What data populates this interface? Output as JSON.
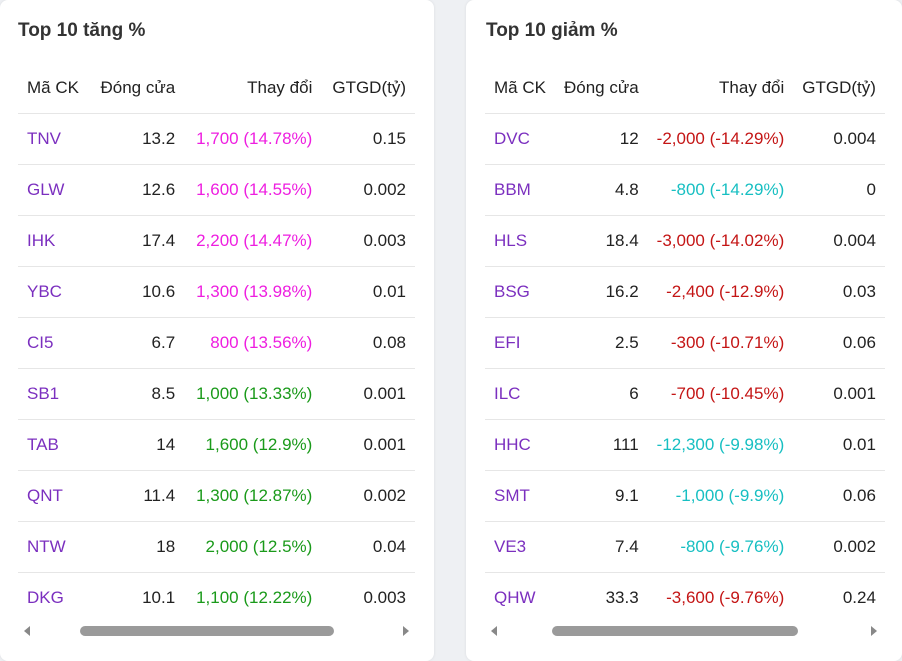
{
  "gainers": {
    "title": "Top 10 tăng %",
    "headers": {
      "symbol": "Mã CK",
      "close": "Đóng cửa",
      "change": "Thay đổi",
      "value": "GTGD(tỷ)"
    },
    "rows": [
      {
        "symbol": "TNV",
        "close": "13.2",
        "change": "1,700 (14.78%)",
        "value": "0.15",
        "trend": "up-ceil"
      },
      {
        "symbol": "GLW",
        "close": "12.6",
        "change": "1,600 (14.55%)",
        "value": "0.002",
        "trend": "up-ceil"
      },
      {
        "symbol": "IHK",
        "close": "17.4",
        "change": "2,200 (14.47%)",
        "value": "0.003",
        "trend": "up-ceil"
      },
      {
        "symbol": "YBC",
        "close": "10.6",
        "change": "1,300 (13.98%)",
        "value": "0.01",
        "trend": "up-ceil"
      },
      {
        "symbol": "CI5",
        "close": "6.7",
        "change": "800 (13.56%)",
        "value": "0.08",
        "trend": "up-ceil"
      },
      {
        "symbol": "SB1",
        "close": "8.5",
        "change": "1,000 (13.33%)",
        "value": "0.001",
        "trend": "up"
      },
      {
        "symbol": "TAB",
        "close": "14",
        "change": "1,600 (12.9%)",
        "value": "0.001",
        "trend": "up"
      },
      {
        "symbol": "QNT",
        "close": "11.4",
        "change": "1,300 (12.87%)",
        "value": "0.002",
        "trend": "up"
      },
      {
        "symbol": "NTW",
        "close": "18",
        "change": "2,000 (12.5%)",
        "value": "0.04",
        "trend": "up"
      },
      {
        "symbol": "DKG",
        "close": "10.1",
        "change": "1,100 (12.22%)",
        "value": "0.003",
        "trend": "up"
      }
    ]
  },
  "losers": {
    "title": "Top 10 giảm %",
    "headers": {
      "symbol": "Mã CK",
      "close": "Đóng cửa",
      "change": "Thay đổi",
      "value": "GTGD(tỷ)"
    },
    "rows": [
      {
        "symbol": "DVC",
        "close": "12",
        "change": "-2,000 (-14.29%)",
        "value": "0.004",
        "trend": "down"
      },
      {
        "symbol": "BBM",
        "close": "4.8",
        "change": "-800 (-14.29%)",
        "value": "0",
        "trend": "down-floor"
      },
      {
        "symbol": "HLS",
        "close": "18.4",
        "change": "-3,000 (-14.02%)",
        "value": "0.004",
        "trend": "down"
      },
      {
        "symbol": "BSG",
        "close": "16.2",
        "change": "-2,400 (-12.9%)",
        "value": "0.03",
        "trend": "down"
      },
      {
        "symbol": "EFI",
        "close": "2.5",
        "change": "-300 (-10.71%)",
        "value": "0.06",
        "trend": "down"
      },
      {
        "symbol": "ILC",
        "close": "6",
        "change": "-700 (-10.45%)",
        "value": "0.001",
        "trend": "down"
      },
      {
        "symbol": "HHC",
        "close": "111",
        "change": "-12,300 (-9.98%)",
        "value": "0.01",
        "trend": "down-floor"
      },
      {
        "symbol": "SMT",
        "close": "9.1",
        "change": "-1,000 (-9.9%)",
        "value": "0.06",
        "trend": "down-floor"
      },
      {
        "symbol": "VE3",
        "close": "7.4",
        "change": "-800 (-9.76%)",
        "value": "0.002",
        "trend": "down-floor"
      },
      {
        "symbol": "QHW",
        "close": "33.3",
        "change": "-3,600 (-9.76%)",
        "value": "0.24",
        "trend": "down"
      }
    ]
  },
  "colors": {
    "symbol": "#7b2fbf",
    "up-ceil": "#ee1ee0",
    "up": "#1a9a1a",
    "down": "#c41515",
    "down-floor": "#17bfc2"
  }
}
